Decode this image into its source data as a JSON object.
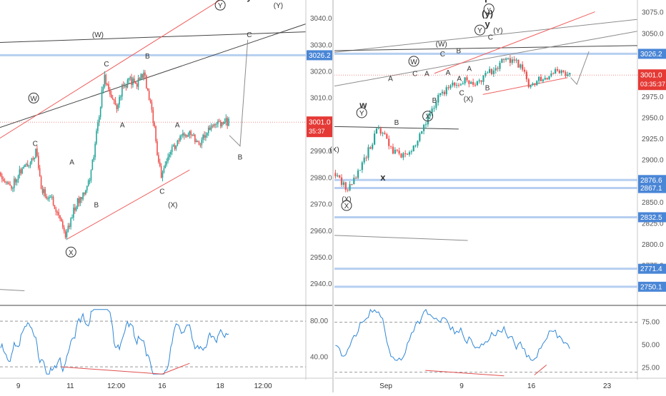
{
  "colors": {
    "up": "#26a69a",
    "down": "#ef5350",
    "osc_line": "#2f87d6",
    "channel_red": "#f06060",
    "trend_dark": "#454545",
    "trend_grey": "#8c8c8c",
    "level_blue": "#7aa7e6",
    "price_label": "#e53935",
    "level_label": "#4a86d6",
    "grid_divider": "#d7d7d7",
    "osc_divergence": "#e05050"
  },
  "chart_data": [
    {
      "type": "candlestick",
      "panel": "left",
      "ylim": [
        2932,
        3047
      ],
      "price_ticks": [
        "3040.0",
        "3030.0",
        "3020.0",
        "3010.0",
        "3000.0",
        "2990.0",
        "2980.0",
        "2970.0",
        "2960.0",
        "2950.0",
        "2940.0"
      ],
      "price_tick_values": [
        3040,
        3030,
        3020,
        3010,
        3000,
        2990,
        2980,
        2970,
        2960,
        2950,
        2940
      ],
      "last_price": {
        "label": "3001.0",
        "value": 3001.0
      },
      "countdown": "35:37",
      "levels": [
        {
          "label": "3026.2",
          "value": 3026.2
        }
      ],
      "time_labels": [
        "9",
        "11",
        "12:00",
        "16",
        "18",
        "12:00"
      ],
      "time_label_pos": [
        0.06,
        0.23,
        0.38,
        0.53,
        0.72,
        0.86
      ],
      "path_keypoints": [
        [
          0,
          2982
        ],
        [
          0.035,
          2976
        ],
        [
          0.06,
          2982
        ],
        [
          0.09,
          2985
        ],
        [
          0.12,
          2990
        ],
        [
          0.135,
          2975
        ],
        [
          0.17,
          2972
        ],
        [
          0.2,
          2964
        ],
        [
          0.215,
          2958
        ],
        [
          0.24,
          2968
        ],
        [
          0.27,
          2974
        ],
        [
          0.295,
          2980
        ],
        [
          0.315,
          2996
        ],
        [
          0.34,
          3018
        ],
        [
          0.36,
          3012
        ],
        [
          0.38,
          3006
        ],
        [
          0.4,
          3014
        ],
        [
          0.425,
          3017
        ],
        [
          0.445,
          3015
        ],
        [
          0.47,
          3020
        ],
        [
          0.49,
          3008
        ],
        [
          0.505,
          3000
        ],
        [
          0.515,
          2988
        ],
        [
          0.53,
          2980
        ],
        [
          0.555,
          2990
        ],
        [
          0.58,
          2993
        ],
        [
          0.6,
          2996
        ],
        [
          0.62,
          2998
        ],
        [
          0.65,
          2993
        ],
        [
          0.68,
          2998
        ],
        [
          0.72,
          3001
        ],
        [
          0.75,
          3001
        ]
      ],
      "annotations": [
        {
          "text": "W",
          "x": 0.11,
          "y": 3009,
          "circled": true
        },
        {
          "text": "C",
          "x": 0.115,
          "y": 2992,
          "circled": false
        },
        {
          "text": "A",
          "x": 0.235,
          "y": 2985,
          "circled": false
        },
        {
          "text": "B",
          "x": 0.315,
          "y": 2969,
          "circled": false
        },
        {
          "text": "X",
          "x": 0.232,
          "y": 2951,
          "circled": true
        },
        {
          "text": "(W)",
          "x": 0.32,
          "y": 3033,
          "circled": false
        },
        {
          "text": "C",
          "x": 0.348,
          "y": 3022,
          "circled": false
        },
        {
          "text": "B",
          "x": 0.482,
          "y": 3025,
          "circled": false
        },
        {
          "text": "A",
          "x": 0.4,
          "y": 2999,
          "circled": false
        },
        {
          "text": "A",
          "x": 0.58,
          "y": 2999,
          "circled": false
        },
        {
          "text": "C",
          "x": 0.53,
          "y": 2974,
          "circled": false
        },
        {
          "text": "(X)",
          "x": 0.565,
          "y": 2969,
          "circled": false
        },
        {
          "text": "Y",
          "x": 0.72,
          "y": 3044,
          "circled": true
        },
        {
          "text": "y",
          "x": 0.815,
          "y": 3047,
          "circled": false
        },
        {
          "text": "(Y)",
          "x": 0.91,
          "y": 3044,
          "circled": false
        },
        {
          "text": "C",
          "x": 0.815,
          "y": 3033,
          "circled": false
        },
        {
          "text": "B",
          "x": 0.785,
          "y": 2987,
          "circled": false
        }
      ],
      "oscillator": {
        "ylim": [
          18,
          96
        ],
        "ticks": [
          "80.00",
          "40.00"
        ],
        "tick_values": [
          80,
          40
        ]
      }
    },
    {
      "type": "candlestick",
      "panel": "right",
      "ylim": [
        2728,
        3090
      ],
      "price_ticks": [
        "3075.0",
        "3050.0",
        "3025.0",
        "3000.0",
        "2975.0",
        "2950.0",
        "2925.0",
        "2900.0",
        "2875.0",
        "2850.0",
        "2825.0",
        "2800.0",
        "2775.0",
        "2750.0"
      ],
      "price_tick_values": [
        3075,
        3050,
        3025,
        3000,
        2975,
        2950,
        2925,
        2900,
        2875,
        2850,
        2825,
        2800,
        2775,
        2750
      ],
      "last_price": {
        "label": "3001.0",
        "value": 3001.0
      },
      "countdown": "03:35:37",
      "levels": [
        {
          "label": "3026.2",
          "value": 3026.2
        },
        {
          "label": "2876.6",
          "value": 2876.6
        },
        {
          "label": "2867.1",
          "value": 2867.1
        },
        {
          "label": "2832.5",
          "value": 2832.5
        },
        {
          "label": "2771.4",
          "value": 2771.4
        },
        {
          "label": "2750.1",
          "value": 2750.1
        }
      ],
      "time_labels": [
        "Sep",
        "9",
        "16",
        "23"
      ],
      "time_label_pos": [
        0.17,
        0.42,
        0.65,
        0.9
      ],
      "path_keypoints": [
        [
          0,
          2885
        ],
        [
          0.03,
          2870
        ],
        [
          0.05,
          2868
        ],
        [
          0.08,
          2885
        ],
        [
          0.11,
          2910
        ],
        [
          0.14,
          2935
        ],
        [
          0.17,
          2930
        ],
        [
          0.19,
          2910
        ],
        [
          0.22,
          2905
        ],
        [
          0.25,
          2910
        ],
        [
          0.28,
          2930
        ],
        [
          0.31,
          2950
        ],
        [
          0.34,
          2975
        ],
        [
          0.37,
          2985
        ],
        [
          0.4,
          2990
        ],
        [
          0.43,
          2995
        ],
        [
          0.46,
          2990
        ],
        [
          0.5,
          3000
        ],
        [
          0.53,
          3010
        ],
        [
          0.56,
          3018
        ],
        [
          0.59,
          3020
        ],
        [
          0.62,
          3008
        ],
        [
          0.64,
          2990
        ],
        [
          0.67,
          2995
        ],
        [
          0.7,
          3000
        ],
        [
          0.73,
          3004
        ],
        [
          0.76,
          3002
        ],
        [
          0.78,
          3001
        ]
      ],
      "annotations": [
        {
          "text": "(X)",
          "x": 0.0,
          "y": 2910,
          "circled": false
        },
        {
          "text": "Y",
          "x": 0.09,
          "y": 2953,
          "circled": true
        },
        {
          "text": "w",
          "x": 0.095,
          "y": 2962,
          "circled": false
        },
        {
          "text": "(X)",
          "x": 0.04,
          "y": 2851,
          "circled": false
        },
        {
          "text": "X",
          "x": 0.04,
          "y": 2843,
          "circled": true
        },
        {
          "text": "x",
          "x": 0.16,
          "y": 2876,
          "circled": false
        },
        {
          "text": "A",
          "x": 0.185,
          "y": 2994,
          "circled": false
        },
        {
          "text": "B",
          "x": 0.205,
          "y": 2942,
          "circled": false
        },
        {
          "text": "W",
          "x": 0.262,
          "y": 3014,
          "circled": true
        },
        {
          "text": "C",
          "x": 0.266,
          "y": 3000,
          "circled": false
        },
        {
          "text": "A",
          "x": 0.305,
          "y": 3000,
          "circled": false
        },
        {
          "text": "B",
          "x": 0.33,
          "y": 2968,
          "circled": false
        },
        {
          "text": "X",
          "x": 0.308,
          "y": 2949,
          "circled": true
        },
        {
          "text": "(W)",
          "x": 0.353,
          "y": 3035,
          "circled": false
        },
        {
          "text": "C",
          "x": 0.357,
          "y": 3023,
          "circled": false
        },
        {
          "text": "B",
          "x": 0.41,
          "y": 3027,
          "circled": false
        },
        {
          "text": "A",
          "x": 0.375,
          "y": 3001,
          "circled": false
        },
        {
          "text": "A",
          "x": 0.412,
          "y": 2994,
          "circled": false
        },
        {
          "text": "C",
          "x": 0.42,
          "y": 2977,
          "circled": false
        },
        {
          "text": "(X)",
          "x": 0.442,
          "y": 2970,
          "circled": false
        },
        {
          "text": "A",
          "x": 0.445,
          "y": 3006,
          "circled": false
        },
        {
          "text": "B",
          "x": 0.505,
          "y": 2983,
          "circled": false
        },
        {
          "text": "Y",
          "x": 0.48,
          "y": 3051,
          "circled": true
        },
        {
          "text": "(Y)",
          "x": 0.54,
          "y": 3051,
          "circled": false
        },
        {
          "text": "C",
          "x": 0.515,
          "y": 3043,
          "circled": false
        },
        {
          "text": "Y",
          "x": 0.5,
          "y": 3087,
          "circled": false
        },
        {
          "text": "y",
          "x": 0.51,
          "y": 3076,
          "circled": true
        },
        {
          "text": "(y)",
          "x": 0.505,
          "y": 3070,
          "circled": false
        },
        {
          "text": "y",
          "x": 0.505,
          "y": 3058,
          "circled": false
        }
      ],
      "oscillator": {
        "ylim": [
          15,
          92
        ],
        "ticks": [
          "75.00",
          "50.00",
          "25.00"
        ],
        "tick_values": [
          75,
          50,
          25
        ]
      }
    }
  ]
}
